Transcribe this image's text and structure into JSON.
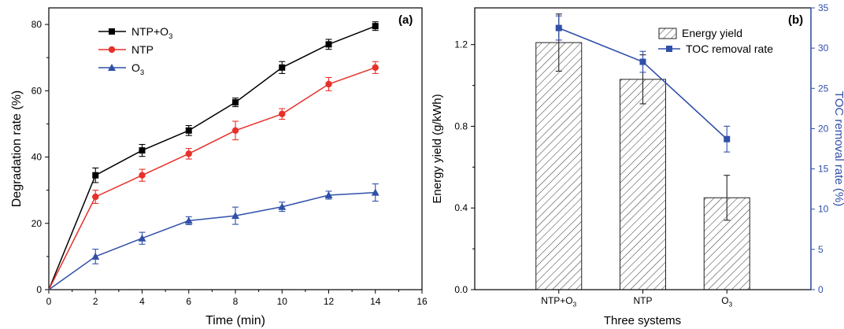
{
  "chart_data": [
    {
      "panel_label": "(a)",
      "type": "line",
      "xlabel": "Time (min)",
      "ylabel": "Degradation rate (%)",
      "xlim": [
        0,
        16
      ],
      "ylim": [
        0,
        85
      ],
      "xticks": [
        "0",
        "2",
        "4",
        "6",
        "8",
        "10",
        "12",
        "14",
        "16"
      ],
      "yticks": [
        "0",
        "20",
        "40",
        "60",
        "80"
      ],
      "x": [
        0,
        2,
        4,
        6,
        8,
        10,
        12,
        14
      ],
      "grid": false,
      "legend_position": "top-left",
      "series": [
        {
          "name": "NTP+O3",
          "name_main": "NTP+O",
          "name_sub": "3",
          "color": "#000000",
          "marker": "square",
          "values": [
            0,
            34.5,
            42,
            48,
            56.5,
            67,
            74,
            79.5
          ],
          "errors": [
            0,
            2.2,
            1.8,
            1.5,
            1.3,
            1.8,
            1.5,
            1.3
          ]
        },
        {
          "name": "NTP",
          "name_main": "NTP",
          "name_sub": "",
          "color": "#e8302a",
          "marker": "circle",
          "values": [
            0,
            28,
            34.5,
            41,
            48,
            53,
            62,
            67
          ],
          "errors": [
            0,
            2.0,
            1.8,
            1.6,
            2.8,
            1.6,
            2.0,
            1.8
          ]
        },
        {
          "name": "O3",
          "name_main": "O",
          "name_sub": "3",
          "color": "#3050a8",
          "marker": "triangle",
          "values": [
            0,
            10,
            15.5,
            20.8,
            22.3,
            25,
            28.5,
            29.3
          ],
          "errors": [
            0,
            2.2,
            1.8,
            1.2,
            2.6,
            1.4,
            1.2,
            2.6
          ]
        }
      ]
    },
    {
      "panel_label": "(b)",
      "type": "bar",
      "xlabel": "Three systems",
      "categories": [
        {
          "main": "NTP+O",
          "sub": "3"
        },
        {
          "main": "NTP",
          "sub": ""
        },
        {
          "main": "O",
          "sub": "3"
        }
      ],
      "ylabel": "Energy yield (g/kWh)",
      "ylim": [
        0,
        1.38
      ],
      "yticks": [
        "0.0",
        "0.4",
        "0.8",
        "1.2"
      ],
      "ylabel_right": "TOC removal rate (%)",
      "ylim_right": [
        0,
        35
      ],
      "yticks_right": [
        "0",
        "5",
        "10",
        "15",
        "20",
        "25",
        "30",
        "35"
      ],
      "right_axis_color": "#3050a8",
      "grid": false,
      "legend_position": "top-right",
      "series": [
        {
          "name": "Energy yield",
          "kind": "bar",
          "axis": "left",
          "values": [
            1.21,
            1.03,
            0.45
          ],
          "errors": [
            0.14,
            0.12,
            0.11
          ]
        },
        {
          "name": "TOC removal rate",
          "kind": "line",
          "axis": "right",
          "color": "#3050a8",
          "marker": "square",
          "values": [
            32.5,
            28.3,
            18.7
          ],
          "errors": [
            1.5,
            1.3,
            1.6
          ]
        }
      ]
    }
  ]
}
